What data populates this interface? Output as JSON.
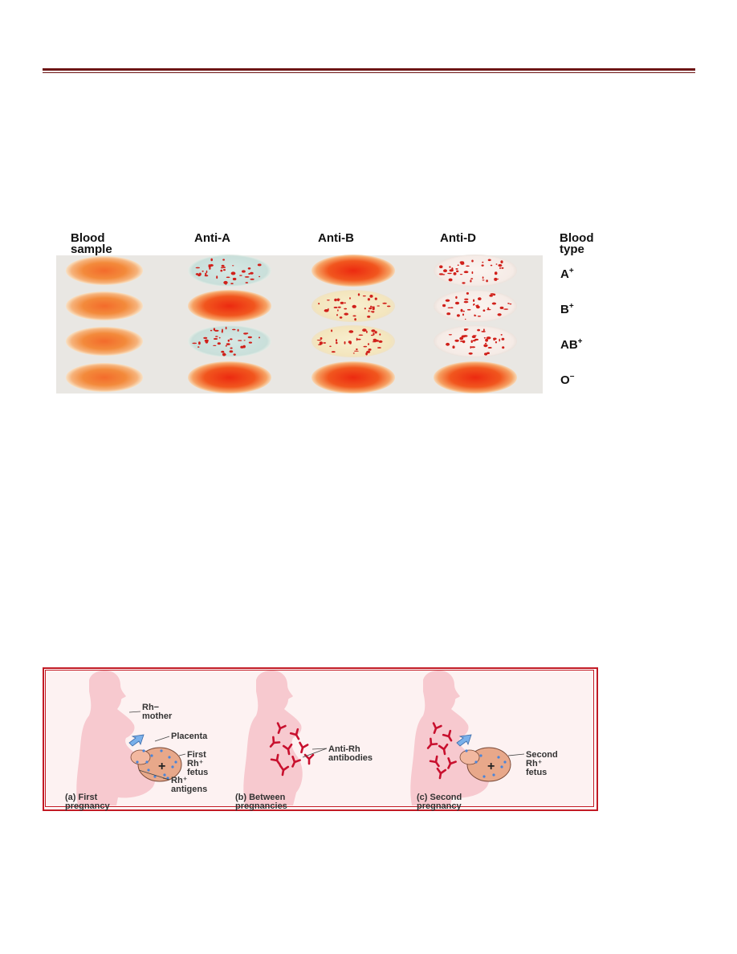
{
  "typing": {
    "headers": {
      "sample": "Blood\nsample",
      "anti_a": "Anti-A",
      "anti_b": "Anti-B",
      "anti_d": "Anti-D",
      "type": "Blood\ntype"
    },
    "rows": [
      {
        "type_base": "A",
        "type_rh": "+",
        "sample": "smooth",
        "anti_a": "agglutinated",
        "anti_b": "smooth",
        "anti_d": "agglutinated"
      },
      {
        "type_base": "B",
        "type_rh": "+",
        "sample": "smooth",
        "anti_a": "smooth",
        "anti_b": "agglutinated",
        "anti_d": "agglutinated"
      },
      {
        "type_base": "AB",
        "type_rh": "+",
        "sample": "smooth",
        "anti_a": "agglutinated",
        "anti_b": "agglutinated",
        "anti_d": "agglutinated"
      },
      {
        "type_base": "O",
        "type_rh": "−",
        "sample": "smooth",
        "anti_a": "smooth",
        "anti_b": "smooth",
        "anti_d": "smooth"
      }
    ],
    "colors": {
      "blood": "#e2381b",
      "blood_light": "#f6a36a",
      "clump": "#d0201a",
      "plate_light_blue": "#cfe3df",
      "plate_light_yellow": "#f5ecc9",
      "plate_white": "#f6efe9"
    }
  },
  "rh": {
    "labels": {
      "rh_mother": "Rh−\nmother",
      "placenta": "Placenta",
      "first_fetus": "First\nRh⁺\nfetus",
      "rh_antigens": "Rh⁺\nantigens",
      "anti_rh": "Anti-Rh\nantibodies",
      "second_fetus": "Second\nRh⁺\nfetus"
    },
    "captions": {
      "a": "(a) First\n      pregnancy",
      "b": "(b) Between\n      pregnancies",
      "c": "(c) Second\n      pregnancy"
    },
    "colors": {
      "frame": "#c21a24",
      "body": "#f7c9cf",
      "fetus": "#e8a88a",
      "antigen": "#4a84d8",
      "antibody": "#c8102e",
      "arrow": "#7ab0ea"
    }
  }
}
